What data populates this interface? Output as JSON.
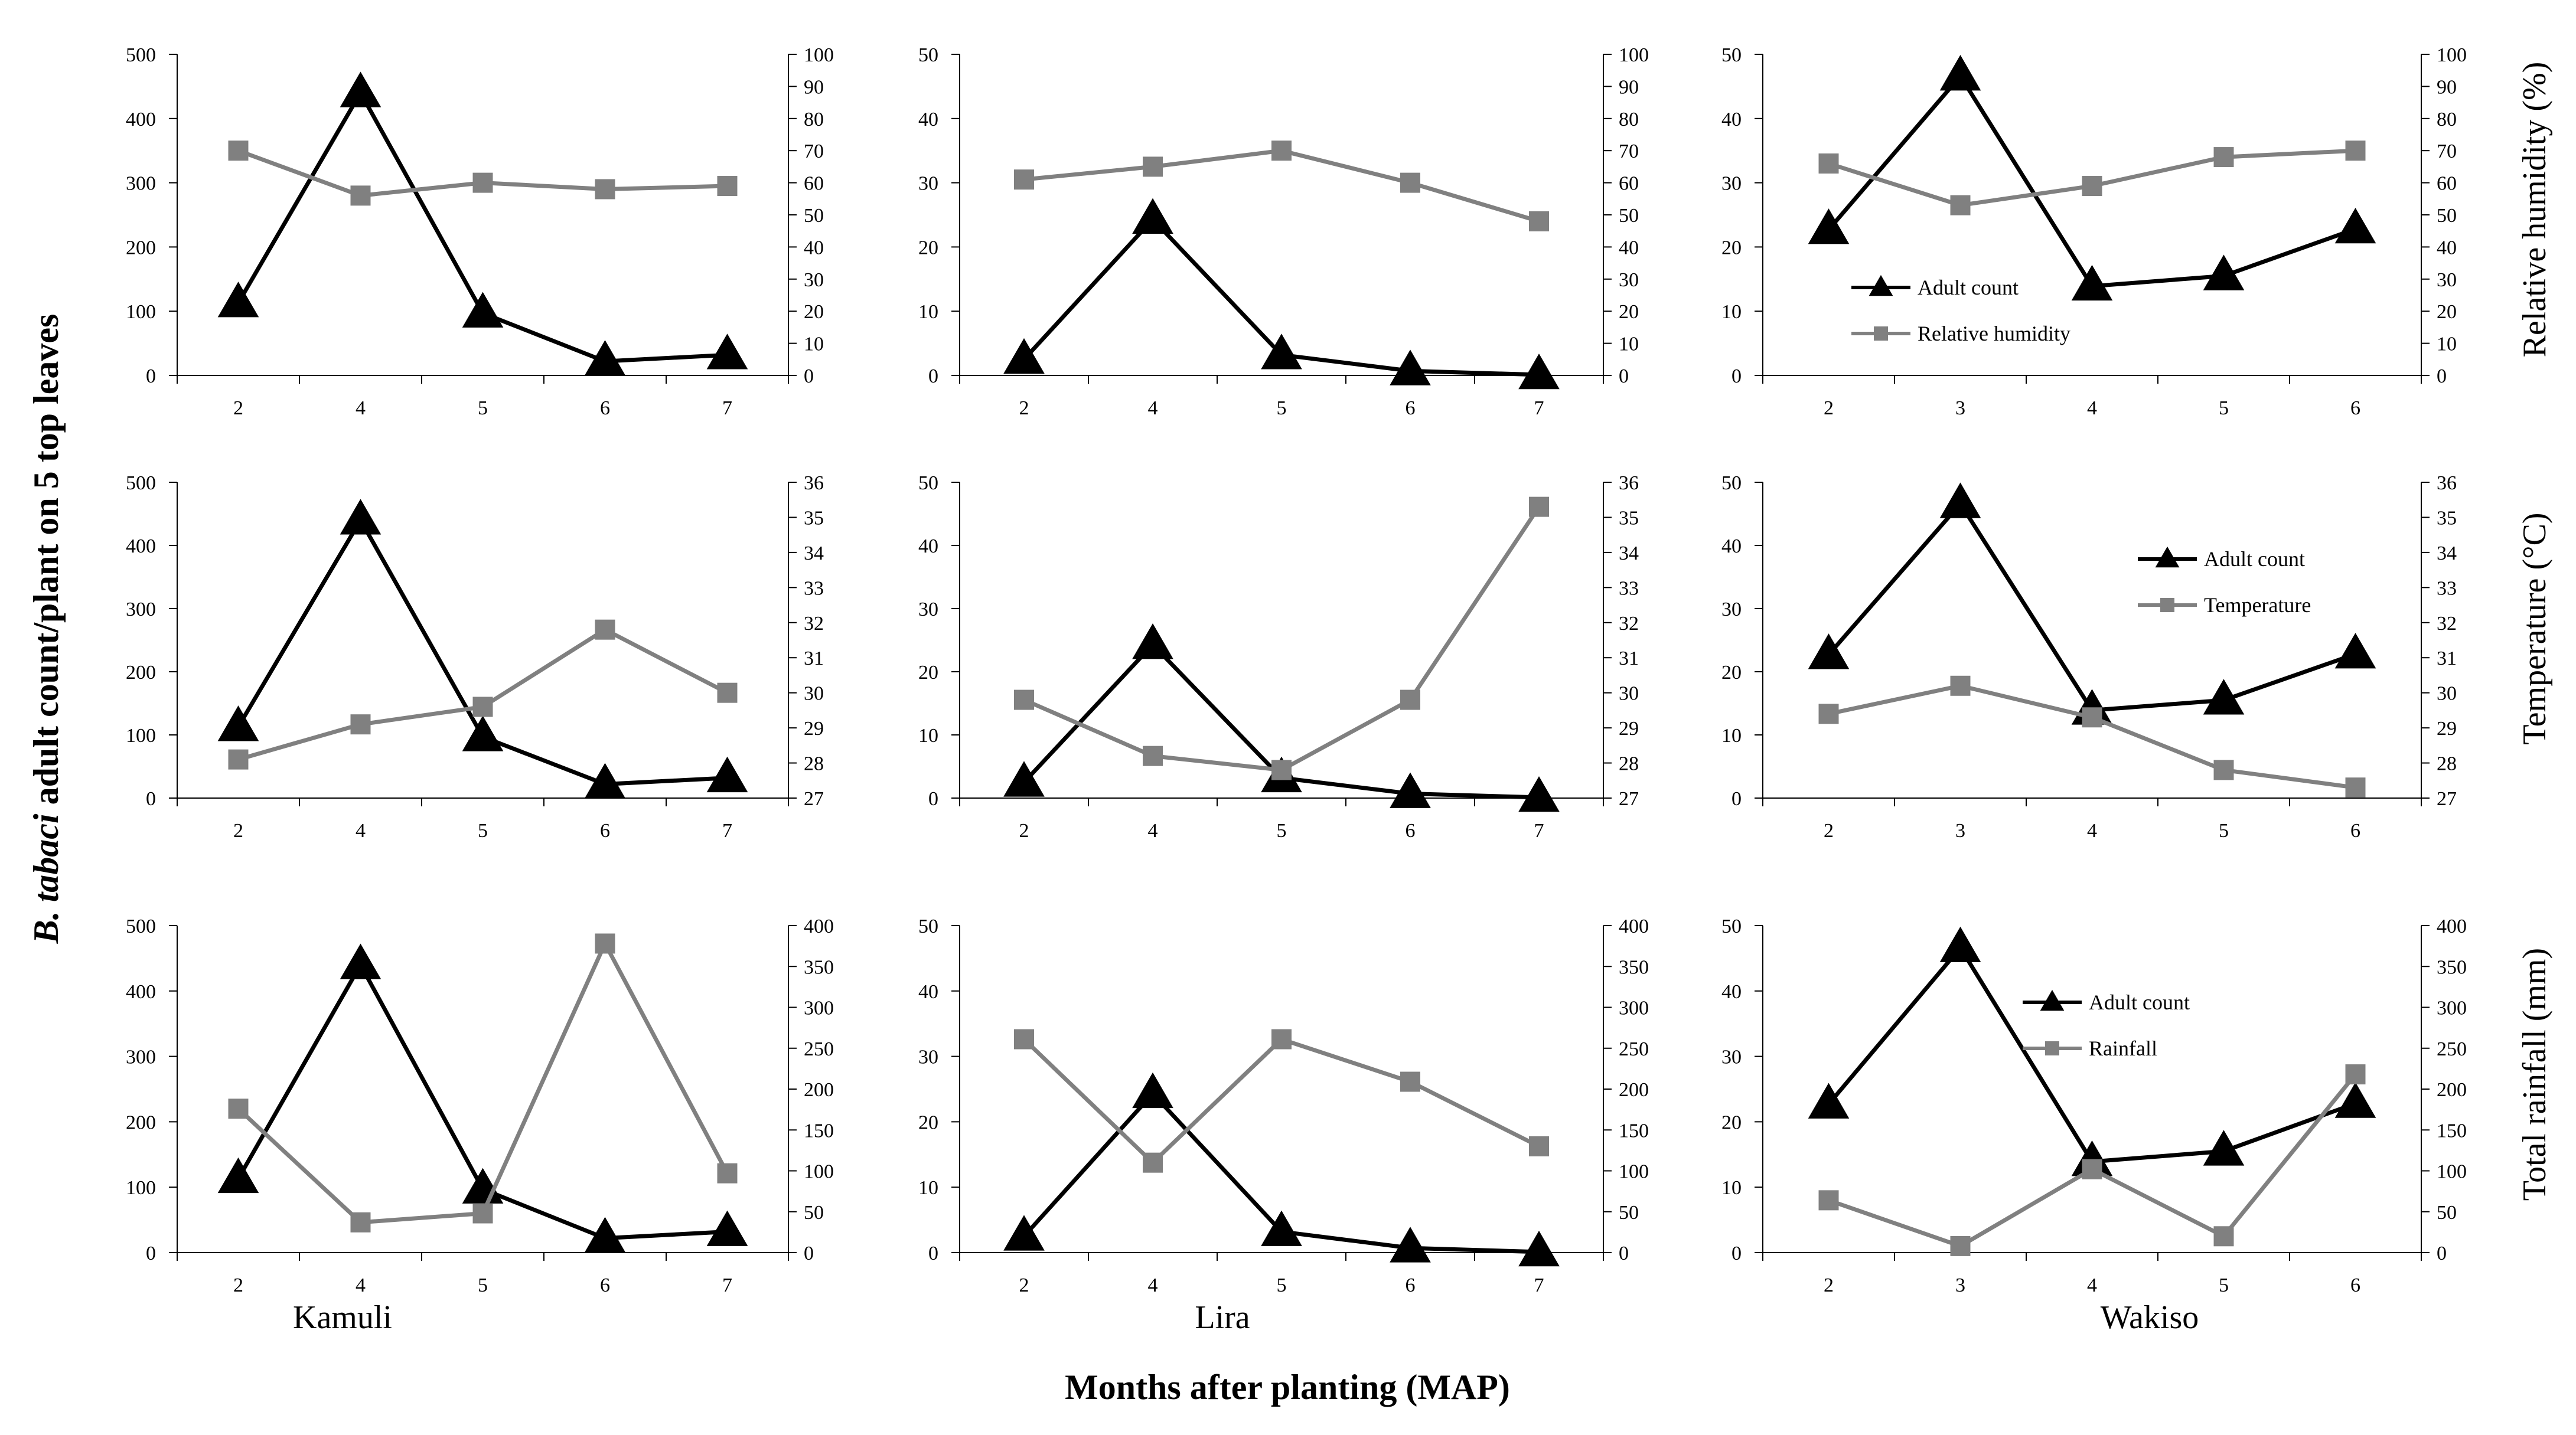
{
  "figure": {
    "y_axis_title_italic": "B. tabaci",
    "y_axis_title_rest": " adult count/plant on 5 top leaves",
    "x_axis_title": "Months after planting (MAP)",
    "sites": [
      "Kamuli",
      "Lira",
      "Wakiso"
    ],
    "right_axis_titles": [
      "Relative humidity (%)",
      "Temperature (°C)",
      "Total rainfall (mm)"
    ],
    "colors": {
      "adult_count": "#000000",
      "weather": "#808080"
    }
  },
  "chart_data": [
    {
      "type": "line",
      "site": "Kamuli",
      "weather_variable": "Relative humidity",
      "categories": [
        "2",
        "4",
        "5",
        "6",
        "7"
      ],
      "series": [
        {
          "name": "Adult count",
          "axis": "left",
          "marker": "triangle",
          "values": [
            113,
            440,
            97,
            22,
            32
          ]
        },
        {
          "name": "Relative humidity",
          "axis": "right",
          "marker": "square",
          "values": [
            70,
            56,
            60,
            58,
            59
          ]
        }
      ],
      "ylim_left": [
        0,
        500
      ],
      "yticks_left": [
        "0",
        "100",
        "200",
        "300",
        "400",
        "500"
      ],
      "ylim_right": [
        0,
        100
      ],
      "yticks_right": [
        "0",
        "10",
        "20",
        "30",
        "40",
        "50",
        "60",
        "70",
        "80",
        "90",
        "100"
      ]
    },
    {
      "type": "line",
      "site": "Lira",
      "weather_variable": "Relative humidity",
      "categories": [
        "2",
        "4",
        "5",
        "6",
        "7"
      ],
      "series": [
        {
          "name": "Adult count",
          "axis": "left",
          "marker": "triangle",
          "values": [
            2.5,
            24.3,
            3.2,
            0.7,
            0.1
          ]
        },
        {
          "name": "Relative humidity",
          "axis": "right",
          "marker": "square",
          "values": [
            61,
            65,
            70,
            60,
            48
          ]
        }
      ],
      "ylim_left": [
        0,
        50
      ],
      "yticks_left": [
        "0",
        "10",
        "20",
        "30",
        "40",
        "50"
      ],
      "ylim_right": [
        0,
        100
      ],
      "yticks_right": [
        "0",
        "10",
        "20",
        "30",
        "40",
        "50",
        "60",
        "70",
        "80",
        "90",
        "100"
      ]
    },
    {
      "type": "line",
      "site": "Wakiso",
      "weather_variable": "Relative humidity",
      "categories": [
        "2",
        "3",
        "4",
        "5",
        "6"
      ],
      "series": [
        {
          "name": "Adult count",
          "axis": "left",
          "marker": "triangle",
          "values": [
            22.7,
            46.6,
            13.9,
            15.5,
            22.8
          ]
        },
        {
          "name": "Relative humidity",
          "axis": "right",
          "marker": "square",
          "values": [
            66,
            53,
            59,
            68,
            70
          ]
        }
      ],
      "ylim_left": [
        0,
        50
      ],
      "yticks_left": [
        "0",
        "10",
        "20",
        "30",
        "40",
        "50"
      ],
      "ylim_right": [
        0,
        100
      ],
      "yticks_right": [
        "0",
        "10",
        "20",
        "30",
        "40",
        "50",
        "60",
        "70",
        "80",
        "90",
        "100"
      ],
      "legend": [
        "Adult count",
        "Relative humidity"
      ]
    },
    {
      "type": "line",
      "site": "Kamuli",
      "weather_variable": "Temperature",
      "categories": [
        "2",
        "4",
        "5",
        "6",
        "7"
      ],
      "series": [
        {
          "name": "Adult count",
          "axis": "left",
          "marker": "triangle",
          "values": [
            113,
            440,
            97,
            22,
            32
          ]
        },
        {
          "name": "Temperature",
          "axis": "right",
          "marker": "square",
          "values": [
            28.1,
            29.1,
            29.6,
            31.8,
            30.0
          ]
        }
      ],
      "ylim_left": [
        0,
        500
      ],
      "yticks_left": [
        "0",
        "100",
        "200",
        "300",
        "400",
        "500"
      ],
      "ylim_right": [
        27,
        36
      ],
      "yticks_right": [
        "27",
        "28",
        "29",
        "30",
        "31",
        "32",
        "33",
        "34",
        "35",
        "36"
      ]
    },
    {
      "type": "line",
      "site": "Lira",
      "weather_variable": "Temperature",
      "categories": [
        "2",
        "4",
        "5",
        "6",
        "7"
      ],
      "series": [
        {
          "name": "Adult count",
          "axis": "left",
          "marker": "triangle",
          "values": [
            2.5,
            24.3,
            3.2,
            0.7,
            0.1
          ]
        },
        {
          "name": "Temperature",
          "axis": "right",
          "marker": "square",
          "values": [
            29.8,
            28.2,
            27.8,
            29.8,
            35.3
          ]
        }
      ],
      "ylim_left": [
        0,
        50
      ],
      "yticks_left": [
        "0",
        "10",
        "20",
        "30",
        "40",
        "50"
      ],
      "ylim_right": [
        27,
        36
      ],
      "yticks_right": [
        "27",
        "28",
        "29",
        "30",
        "31",
        "32",
        "33",
        "34",
        "35",
        "36"
      ]
    },
    {
      "type": "line",
      "site": "Wakiso",
      "weather_variable": "Temperature",
      "categories": [
        "2",
        "3",
        "4",
        "5",
        "6"
      ],
      "series": [
        {
          "name": "Adult count",
          "axis": "left",
          "marker": "triangle",
          "values": [
            22.7,
            46.6,
            13.9,
            15.5,
            22.8
          ]
        },
        {
          "name": "Temperature",
          "axis": "right",
          "marker": "square",
          "values": [
            29.4,
            30.2,
            29.3,
            27.8,
            27.3
          ]
        }
      ],
      "ylim_left": [
        0,
        50
      ],
      "yticks_left": [
        "0",
        "10",
        "20",
        "30",
        "40",
        "50"
      ],
      "ylim_right": [
        27,
        36
      ],
      "yticks_right": [
        "27",
        "28",
        "29",
        "30",
        "31",
        "32",
        "33",
        "34",
        "35",
        "36"
      ],
      "legend": [
        "Adult count",
        "Temperature"
      ]
    },
    {
      "type": "line",
      "site": "Kamuli",
      "weather_variable": "Rainfall",
      "categories": [
        "2",
        "4",
        "5",
        "6",
        "7"
      ],
      "series": [
        {
          "name": "Adult count",
          "axis": "left",
          "marker": "triangle",
          "values": [
            113,
            440,
            97,
            22,
            32
          ]
        },
        {
          "name": "Rainfall",
          "axis": "right",
          "marker": "square",
          "values": [
            176,
            37,
            48,
            378,
            97
          ]
        }
      ],
      "ylim_left": [
        0,
        500
      ],
      "yticks_left": [
        "0",
        "100",
        "200",
        "300",
        "400",
        "500"
      ],
      "ylim_right": [
        0,
        400
      ],
      "yticks_right": [
        "0",
        "50",
        "100",
        "150",
        "200",
        "250",
        "300",
        "350",
        "400"
      ]
    },
    {
      "type": "line",
      "site": "Lira",
      "weather_variable": "Rainfall",
      "categories": [
        "2",
        "4",
        "5",
        "6",
        "7"
      ],
      "series": [
        {
          "name": "Adult count",
          "axis": "left",
          "marker": "triangle",
          "values": [
            2.5,
            24.3,
            3.2,
            0.7,
            0.1
          ]
        },
        {
          "name": "Rainfall",
          "axis": "right",
          "marker": "square",
          "values": [
            261,
            110,
            261,
            209,
            130
          ]
        }
      ],
      "ylim_left": [
        0,
        50
      ],
      "yticks_left": [
        "0",
        "10",
        "20",
        "30",
        "40",
        "50"
      ],
      "ylim_right": [
        0,
        400
      ],
      "yticks_right": [
        "0",
        "50",
        "100",
        "150",
        "200",
        "250",
        "300",
        "350",
        "400"
      ]
    },
    {
      "type": "line",
      "site": "Wakiso",
      "weather_variable": "Rainfall",
      "categories": [
        "2",
        "3",
        "4",
        "5",
        "6"
      ],
      "series": [
        {
          "name": "Adult count",
          "axis": "left",
          "marker": "triangle",
          "values": [
            22.7,
            46.6,
            13.9,
            15.5,
            22.8
          ]
        },
        {
          "name": "Rainfall",
          "axis": "right",
          "marker": "square",
          "values": [
            64,
            8,
            102,
            20,
            218
          ]
        }
      ],
      "ylim_left": [
        0,
        50
      ],
      "yticks_left": [
        "0",
        "10",
        "20",
        "30",
        "40",
        "50"
      ],
      "ylim_right": [
        0,
        400
      ],
      "yticks_right": [
        "0",
        "50",
        "100",
        "150",
        "200",
        "250",
        "300",
        "350",
        "400"
      ],
      "legend": [
        "Adult count",
        "Rainfall"
      ]
    }
  ]
}
